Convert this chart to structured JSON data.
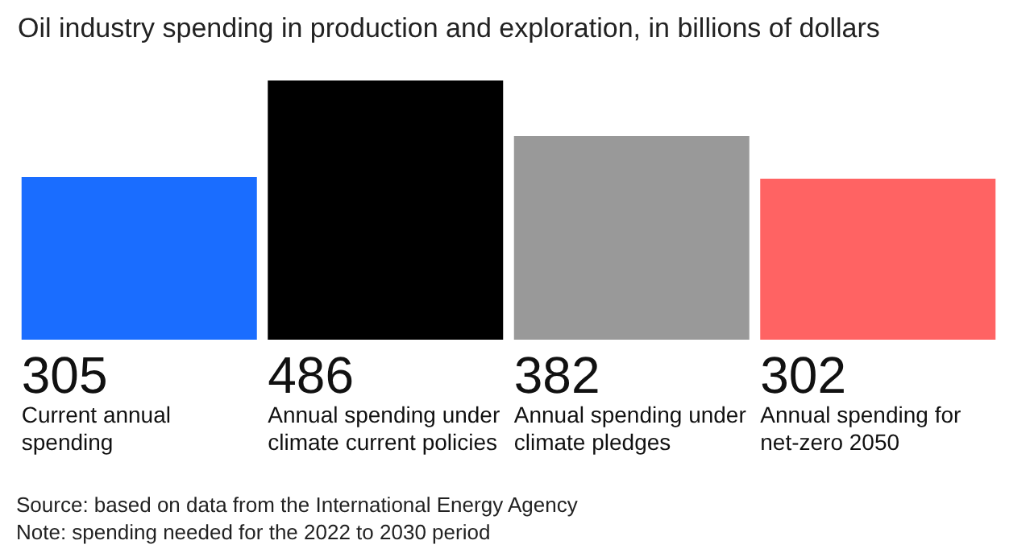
{
  "chart_data": {
    "type": "bar",
    "title": "Oil industry spending in production and exploration, in billions of dollars",
    "categories": [
      "Current annual spending",
      "Annual spending under climate current policies",
      "Annual spending under climate pledges",
      "Annual spending for net-zero 2050"
    ],
    "values": [
      305,
      486,
      382,
      302
    ],
    "colors": [
      "#1a6dff",
      "#000000",
      "#999999",
      "#ff6363"
    ],
    "data_labels": true,
    "annotations": [
      "Source: based on data from the International Energy Agency",
      "Note: spending needed for the 2022 to 2030 period"
    ]
  }
}
